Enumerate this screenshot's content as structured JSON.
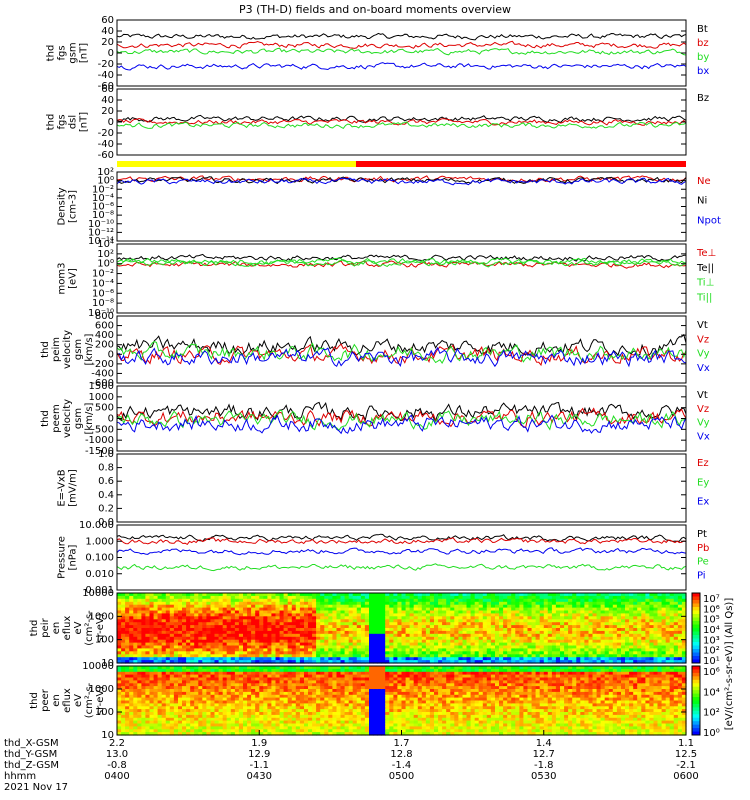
{
  "title": "P3 (TH-D) fields and on-board moments overview",
  "colors": {
    "black": "#000000",
    "red": "#dd0000",
    "green": "#22dd22",
    "blue": "#0000ee",
    "yellow": "#ffff00",
    "barred": "#ff0000"
  },
  "chart_data": [
    {
      "type": "line",
      "panel": "fgs-gsm",
      "ylabel": [
        "thd",
        "fgs",
        "gsm",
        "[nT]"
      ],
      "ylim": [
        -60,
        60
      ],
      "ticks": [
        "60",
        "40",
        "20",
        "0",
        "-20",
        "-40",
        "-60"
      ],
      "series": [
        {
          "name": "Bt",
          "color": "#000000"
        },
        {
          "name": "bz",
          "color": "#dd0000"
        },
        {
          "name": "by",
          "color": "#22dd22"
        },
        {
          "name": "bx",
          "color": "#0000ee"
        }
      ]
    },
    {
      "type": "line",
      "panel": "fgs-dsl",
      "ylabel": [
        "thd",
        "fgs",
        "dsl",
        "[nT]"
      ],
      "ylim": [
        -60,
        60
      ],
      "ticks": [
        "60",
        "40",
        "20",
        "0",
        "-20",
        "-40",
        "-60"
      ],
      "series": [
        {
          "name": "Bz",
          "color": "#000000"
        },
        {
          "name": "",
          "color": "#dd0000"
        },
        {
          "name": "",
          "color": "#22dd22"
        }
      ]
    },
    {
      "type": "line",
      "panel": "density",
      "yscale": "log",
      "ylabel": [
        "Density",
        "[cm-3]"
      ],
      "ticks": [
        "10²",
        "10⁰",
        "10⁻²",
        "10⁻⁴",
        "10⁻⁶",
        "10⁻⁸",
        "10⁻¹⁰",
        "10⁻¹²",
        "10⁻¹⁴"
      ],
      "series": [
        {
          "name": "Ne",
          "color": "#dd0000"
        },
        {
          "name": "Ni",
          "color": "#000000"
        },
        {
          "name": "Npot",
          "color": "#0000ee"
        }
      ]
    },
    {
      "type": "line",
      "panel": "temperature",
      "yscale": "log",
      "ylabel": [
        "mom3",
        "[eV]"
      ],
      "ticks": [
        "10⁴",
        "10²",
        "10⁰",
        "10⁻²",
        "10⁻⁴",
        "10⁻⁶",
        "10⁻⁸",
        "10⁻¹⁰"
      ],
      "series": [
        {
          "name": "Te⊥",
          "color": "#dd0000"
        },
        {
          "name": "Te||",
          "color": "#000000"
        },
        {
          "name": "Ti⊥",
          "color": "#22dd22"
        },
        {
          "name": "Ti||",
          "color": "#22dd22"
        }
      ]
    },
    {
      "type": "line",
      "panel": "ion-velocity",
      "ylabel": [
        "thd",
        "peim",
        "velocity",
        "gsm",
        "[km/s]"
      ],
      "ylim": [
        -600,
        800
      ],
      "ticks": [
        "800",
        "600",
        "400",
        "200",
        "0",
        "-200",
        "-400",
        "-600"
      ],
      "series": [
        {
          "name": "Vt",
          "color": "#000000"
        },
        {
          "name": "Vz",
          "color": "#dd0000"
        },
        {
          "name": "Vy",
          "color": "#22dd22"
        },
        {
          "name": "Vx",
          "color": "#0000ee"
        }
      ]
    },
    {
      "type": "line",
      "panel": "electron-velocity",
      "ylabel": [
        "thd",
        "peem",
        "velocity",
        "gsm",
        "[km/s]"
      ],
      "ylim": [
        -1500,
        1500
      ],
      "ticks": [
        "1500",
        "1000",
        "500",
        "0",
        "-500",
        "-1000",
        "-1500"
      ],
      "series": [
        {
          "name": "Vt",
          "color": "#000000"
        },
        {
          "name": "Vz",
          "color": "#dd0000"
        },
        {
          "name": "Vy",
          "color": "#22dd22"
        },
        {
          "name": "Vx",
          "color": "#0000ee"
        }
      ]
    },
    {
      "type": "line",
      "panel": "efield",
      "ylabel": [
        "E=-VxB",
        "[mV/m]"
      ],
      "ylim": [
        0,
        1
      ],
      "ticks": [
        "1.0",
        "0.8",
        "0.6",
        "0.4",
        "0.2",
        "0.0"
      ],
      "series": [
        {
          "name": "Ez",
          "color": "#dd0000"
        },
        {
          "name": "Ey",
          "color": "#22dd22"
        },
        {
          "name": "Ex",
          "color": "#0000ee"
        }
      ]
    },
    {
      "type": "line",
      "panel": "pressure",
      "yscale": "log",
      "ylabel": [
        "Pressure",
        "[nPa]"
      ],
      "ticks": [
        "10.000",
        "1.000",
        "0.100",
        "0.010",
        "0.001"
      ],
      "series": [
        {
          "name": "Pt",
          "color": "#000000"
        },
        {
          "name": "Pb",
          "color": "#dd0000"
        },
        {
          "name": "Pe",
          "color": "#22dd22"
        },
        {
          "name": "Pi",
          "color": "#0000ee"
        }
      ]
    },
    {
      "type": "heatmap",
      "panel": "ion-eflux",
      "yscale": "log",
      "ylabel": [
        "thd",
        "peir",
        "en",
        "eflux",
        "eV",
        "(cm²-s-",
        "sr-eV)"
      ],
      "ticks": [
        "10000",
        "1000",
        "100",
        "10"
      ]
    },
    {
      "type": "heatmap",
      "panel": "electron-eflux",
      "yscale": "log",
      "ylabel": [
        "thd",
        "peer",
        "en",
        "eflux",
        "eV",
        "(cm²-s-",
        "sr-eV)"
      ],
      "ticks": [
        "10000",
        "1000",
        "100",
        "10"
      ]
    }
  ],
  "colorbars": [
    {
      "ticks": [
        "10⁷",
        "10⁶",
        "10⁵",
        "10⁴",
        "10³",
        "10²",
        "10¹"
      ]
    },
    {
      "ticks": [
        "10⁶",
        "10⁴",
        "10²",
        "10⁰"
      ]
    }
  ],
  "colorbar_label": "[eV/(cm²-s-sr-eV)] (All Qs)]",
  "xaxis": {
    "rows": [
      {
        "label": "thd_X-GSM",
        "values": [
          "2.2",
          "1.9",
          "1.7",
          "1.4",
          "1.1"
        ]
      },
      {
        "label": "thd_Y-GSM",
        "values": [
          "13.0",
          "12.9",
          "12.8",
          "12.7",
          "12.5"
        ]
      },
      {
        "label": "thd_Z-GSM",
        "values": [
          "-0.8",
          "-1.1",
          "-1.4",
          "-1.8",
          "-2.1"
        ]
      },
      {
        "label": "hhmm",
        "values": [
          "0400",
          "0430",
          "0500",
          "0530",
          "0600"
        ]
      }
    ],
    "date": "2021 Nov 17"
  }
}
